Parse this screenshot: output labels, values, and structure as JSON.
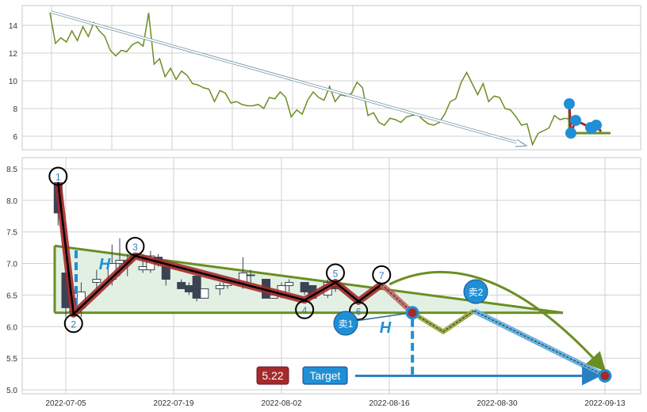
{
  "chart_data": [
    {
      "type": "line",
      "title": "",
      "y_ticks": [
        "6",
        "8",
        "10",
        "12",
        "14"
      ],
      "ylim": [
        5,
        15.3
      ],
      "grid": true,
      "series": [
        {
          "name": "close",
          "color": "#6b8e23",
          "values": [
            14.9,
            12.7,
            13.1,
            12.8,
            13.6,
            12.9,
            13.9,
            13.2,
            14.2,
            13.6,
            13.2,
            12.2,
            11.8,
            12.2,
            12.1,
            12.6,
            12.8,
            12.5,
            14.9,
            11.2,
            11.6,
            10.3,
            10.9,
            10.1,
            10.7,
            10.4,
            9.8,
            9.7,
            9.5,
            9.4,
            8.5,
            9.3,
            9.1,
            8.4,
            8.5,
            8.3,
            8.2,
            8.2,
            8.3,
            8.0,
            8.8,
            8.7,
            9.2,
            8.8,
            7.4,
            7.9,
            7.6,
            8.6,
            9.2,
            8.8,
            8.6,
            9.6,
            8.5,
            9.0,
            8.9,
            9.1,
            9.9,
            9.5,
            7.5,
            7.7,
            7.0,
            6.8,
            7.3,
            7.2,
            7.0,
            7.4,
            7.5,
            7.6,
            7.2,
            6.9,
            6.8,
            7.0,
            7.6,
            8.5,
            8.7,
            9.9,
            10.6,
            9.8,
            9.0,
            9.8,
            8.5,
            8.9,
            8.8,
            8.0,
            7.9,
            7.4,
            6.8,
            6.9,
            5.4,
            6.2,
            6.4,
            6.6,
            7.5,
            7.2,
            7.3,
            7.2
          ]
        }
      ],
      "annotation": "downtrend arrow"
    },
    {
      "type": "candlestick",
      "x_ticks": [
        "2022-07-05",
        "2022-07-19",
        "2022-08-02",
        "2022-08-16",
        "2022-08-30",
        "2022-09-13"
      ],
      "y_ticks": [
        "5.0",
        "5.5",
        "6.0",
        "6.5",
        "7.0",
        "7.5",
        "8.0",
        "8.5"
      ],
      "ylim": [
        4.95,
        8.65
      ],
      "grid": true,
      "candles": [
        [
          -1,
          8.28,
          8.3,
          7.6,
          7.8
        ],
        [
          0,
          6.85,
          6.85,
          6.15,
          6.3
        ],
        [
          1,
          6.25,
          6.5,
          6.15,
          6.25
        ],
        [
          2,
          6.3,
          6.7,
          6.15,
          6.55
        ],
        [
          4,
          6.7,
          6.9,
          6.6,
          6.75
        ],
        [
          6,
          6.75,
          7.3,
          6.65,
          7.0
        ],
        [
          7,
          7.0,
          7.4,
          6.8,
          7.05
        ],
        [
          8,
          7.05,
          7.15,
          6.8,
          7.0
        ],
        [
          10,
          6.9,
          7.15,
          6.85,
          6.95
        ],
        [
          11,
          6.9,
          7.2,
          6.85,
          7.12
        ],
        [
          12,
          7.1,
          7.15,
          6.95,
          7.0
        ],
        [
          13,
          6.95,
          7.0,
          6.65,
          6.75
        ],
        [
          15,
          6.7,
          6.75,
          6.6,
          6.6
        ],
        [
          16,
          6.65,
          6.7,
          6.5,
          6.55
        ],
        [
          17,
          6.8,
          6.8,
          6.4,
          6.45
        ],
        [
          18,
          6.45,
          6.6,
          6.45,
          6.6
        ],
        [
          20,
          6.6,
          6.7,
          6.5,
          6.65
        ],
        [
          21,
          6.65,
          6.7,
          6.6,
          6.7
        ],
        [
          23,
          6.7,
          7.1,
          6.6,
          6.85
        ],
        [
          24,
          6.82,
          6.9,
          6.7,
          6.82
        ],
        [
          26,
          6.75,
          6.75,
          6.45,
          6.45
        ],
        [
          27,
          6.45,
          6.6,
          6.45,
          6.5
        ],
        [
          28,
          6.5,
          6.7,
          6.45,
          6.65
        ],
        [
          29,
          6.65,
          6.75,
          6.55,
          6.7
        ],
        [
          31,
          6.7,
          6.7,
          6.5,
          6.55
        ],
        [
          32,
          6.65,
          6.65,
          6.45,
          6.45
        ],
        [
          34,
          6.5,
          6.75,
          6.45,
          6.7
        ],
        [
          35,
          6.65,
          6.72,
          6.55,
          6.6
        ]
      ],
      "pivots": [
        {
          "label": "1",
          "date": "2022-07-04",
          "price": 8.28
        },
        {
          "label": "2",
          "date": "2022-07-06",
          "price": 6.2
        },
        {
          "label": "3",
          "date": "2022-07-14",
          "price": 7.12
        },
        {
          "label": "4",
          "date": "2022-08-05",
          "price": 6.42
        },
        {
          "label": "5",
          "date": "2022-08-09",
          "price": 6.7
        },
        {
          "label": "6",
          "date": "2022-08-12",
          "price": 6.4
        },
        {
          "label": "7",
          "date": "2022-08-15",
          "price": 6.67
        }
      ],
      "sell_points": [
        {
          "label": "卖1",
          "date": "2022-08-19",
          "price": 6.22
        },
        {
          "label": "卖2",
          "date": "2022-08-27",
          "price": 6.25
        }
      ],
      "projection_mid": {
        "date": "2022-08-23",
        "price": 5.92
      },
      "target": {
        "label": "Target",
        "value": "5.22",
        "date": "2022-09-13",
        "price": 5.22
      },
      "height_label": "H",
      "triangle": {
        "top_start": 7.28,
        "top_end": 6.22,
        "base": 6.22
      }
    }
  ]
}
